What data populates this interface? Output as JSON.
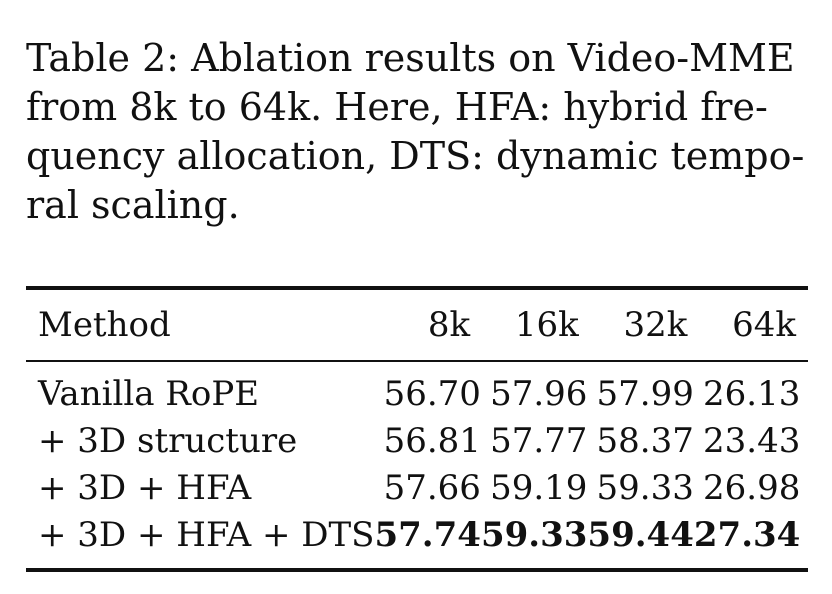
{
  "caption": {
    "lines": [
      "Table 2: Ablation results on Video-MME",
      "from 8k to 64k.  Here, HFA: hybrid fre-",
      "quency allocation, DTS: dynamic tempo-",
      "ral scaling."
    ]
  },
  "table": {
    "headers": [
      "Method",
      "8k",
      "16k",
      "32k",
      "64k"
    ],
    "rows": [
      {
        "method": "Vanilla RoPE",
        "values": [
          "56.70",
          "57.96",
          "57.99",
          "26.13"
        ]
      },
      {
        "method": "+ 3D structure",
        "values": [
          "56.81",
          "57.77",
          "58.37",
          "23.43"
        ]
      },
      {
        "method": "+ 3D + HFA",
        "values": [
          "57.66",
          "59.19",
          "59.33",
          "26.98"
        ]
      },
      {
        "method": "+ 3D + HFA + DTS",
        "values": [
          "57.74",
          "59.33",
          "59.44",
          "27.34"
        ],
        "bold": true
      }
    ]
  }
}
